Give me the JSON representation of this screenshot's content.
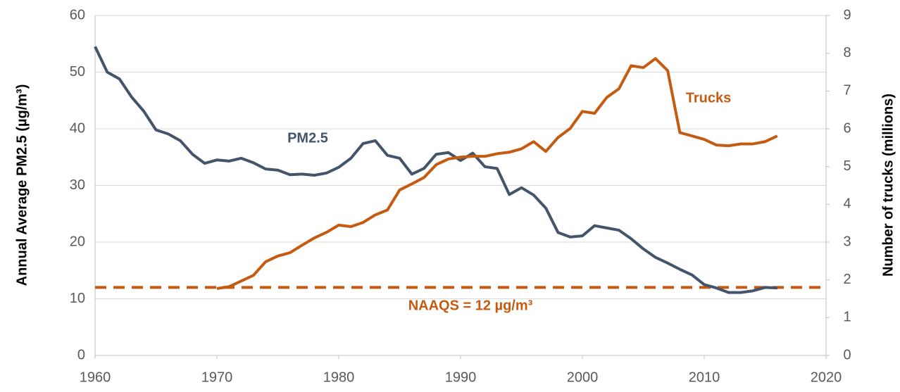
{
  "chart_data": {
    "type": "line",
    "x": [
      1960,
      1961,
      1962,
      1963,
      1964,
      1965,
      1966,
      1967,
      1968,
      1969,
      1970,
      1971,
      1972,
      1973,
      1974,
      1975,
      1976,
      1977,
      1978,
      1979,
      1980,
      1981,
      1982,
      1983,
      1984,
      1985,
      1986,
      1987,
      1988,
      1989,
      1990,
      1991,
      1992,
      1993,
      1994,
      1995,
      1996,
      1997,
      1998,
      1999,
      2000,
      2001,
      2002,
      2003,
      2004,
      2005,
      2006,
      2007,
      2008,
      2009,
      2010,
      2011,
      2012,
      2013,
      2014,
      2015,
      2016
    ],
    "series": [
      {
        "name": "PM2.5",
        "color": "#44546a",
        "values": [
          54.5,
          50,
          48.8,
          45.6,
          43.1,
          39.8,
          39.1,
          37.9,
          35.5,
          33.9,
          34.5,
          34.3,
          34.8,
          34,
          32.9,
          32.7,
          31.9,
          32,
          31.8,
          32.2,
          33.2,
          34.8,
          37.4,
          37.9,
          35.3,
          34.8,
          32,
          33,
          35.5,
          35.8,
          34.4,
          35.7,
          33.3,
          33,
          28.4,
          29.6,
          28.3,
          26,
          21.7,
          20.9,
          21.1,
          22.9,
          22.5,
          22.1,
          20.6,
          18.8,
          17.3,
          16.3,
          15.2,
          14.2,
          12.5,
          11.9,
          11.1,
          11.1,
          11.4,
          12,
          11.9
        ]
      },
      {
        "name": "Trucks",
        "color": "#c55a11",
        "axis": "y2",
        "values": [
          null,
          null,
          null,
          null,
          null,
          null,
          null,
          null,
          null,
          null,
          1.77,
          1.82,
          1.97,
          2.12,
          2.48,
          2.63,
          2.72,
          2.92,
          3.11,
          3.26,
          3.45,
          3.41,
          3.52,
          3.72,
          3.85,
          4.38,
          4.54,
          4.71,
          5.05,
          5.2,
          5.25,
          5.27,
          5.27,
          5.34,
          5.38,
          5.47,
          5.66,
          5.4,
          5.77,
          6.01,
          6.46,
          6.41,
          6.83,
          7.06,
          7.67,
          7.62,
          7.86,
          7.54,
          5.9,
          5.81,
          5.72,
          5.57,
          5.55,
          5.6,
          5.6,
          5.66,
          5.81
        ]
      }
    ],
    "reference_line": {
      "value": 12,
      "label": "NAAQS = 12 µg/m³",
      "color": "#c55a11"
    },
    "ylabel": "Annual Average PM2.5 (µg/m³)",
    "y2label": "Number of trucks (millions)",
    "xlim": [
      1960,
      2020
    ],
    "xticks": [
      1960,
      1970,
      1980,
      1990,
      2000,
      2010,
      2020
    ],
    "ylim": [
      0,
      60
    ],
    "yticks": [
      0,
      10,
      20,
      30,
      40,
      50,
      60
    ],
    "y2lim": [
      0,
      9
    ],
    "y2ticks": [
      0,
      1,
      2,
      3,
      4,
      5,
      6,
      7,
      8,
      9
    ],
    "grid": true
  }
}
